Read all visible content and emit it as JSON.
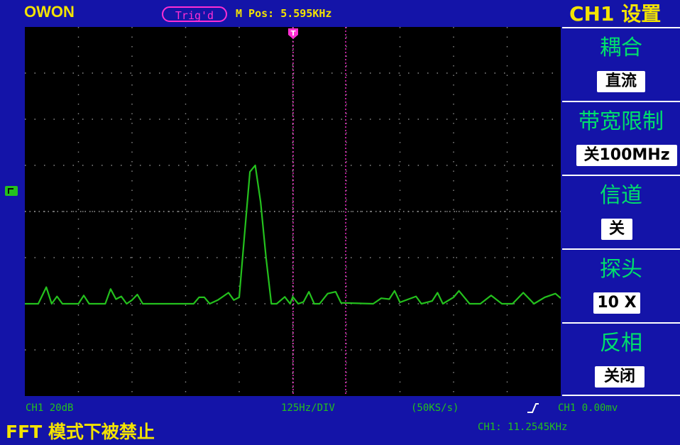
{
  "header": {
    "brand": "OWON",
    "trigger_status": "Trig'd",
    "mpos_label": "M Pos:",
    "mpos_value": "5.595KHz",
    "menu_title": "CH1 设置"
  },
  "menu": {
    "items": [
      {
        "title": "耦合",
        "value": "直流"
      },
      {
        "title": "带宽限制",
        "value": "关100MHz"
      },
      {
        "title": "信道",
        "value": "关"
      },
      {
        "title": "探头",
        "value": "10 X"
      },
      {
        "title": "反相",
        "value": "关闭"
      }
    ]
  },
  "footer": {
    "ch_scale": "CH1 20dB",
    "hz_div": "125Hz/DIV",
    "sample_rate": "(50KS/s)",
    "trigger_level": "CH1 0.00mv",
    "freq_readout": "CH1: 11.2545KHz",
    "status_message": "FFT 模式下被禁止"
  },
  "colors": {
    "background": "#1414a8",
    "trace": "#24c11d",
    "accent": "#f3e300",
    "marker": "#ff2fd3",
    "menu_title": "#00e06c"
  },
  "chart_data": {
    "type": "line",
    "series": [
      {
        "points": [
          [
            0,
            20.0
          ],
          [
            0.05,
            20.0
          ],
          [
            0.08,
            23.6
          ],
          [
            0.1,
            20.0
          ],
          [
            0.12,
            21.6
          ],
          [
            0.14,
            20.0
          ],
          [
            0.2,
            20.0
          ],
          [
            0.22,
            21.8
          ],
          [
            0.24,
            20.0
          ],
          [
            0.3,
            20.0
          ],
          [
            0.32,
            23.2
          ],
          [
            0.34,
            21.0
          ],
          [
            0.36,
            21.6
          ],
          [
            0.38,
            20.0
          ],
          [
            0.4,
            20.8
          ],
          [
            0.42,
            22.0
          ],
          [
            0.44,
            20.0
          ],
          [
            0.6,
            20.0
          ],
          [
            0.63,
            20.0
          ],
          [
            0.65,
            21.4
          ],
          [
            0.67,
            21.4
          ],
          [
            0.69,
            20.0
          ],
          [
            0.72,
            20.8
          ],
          [
            0.74,
            21.6
          ],
          [
            0.76,
            22.4
          ],
          [
            0.78,
            20.8
          ],
          [
            0.8,
            21.4
          ],
          [
            0.82,
            35.0
          ],
          [
            0.84,
            48.6
          ],
          [
            0.86,
            50.0
          ],
          [
            0.88,
            42.0
          ],
          [
            0.9,
            30.0
          ],
          [
            0.92,
            20.0
          ],
          [
            0.94,
            20.0
          ],
          [
            0.97,
            21.5
          ],
          [
            0.99,
            20.0
          ],
          [
            1.0,
            21.5
          ],
          [
            1.02,
            20.0
          ],
          [
            1.04,
            20.4
          ],
          [
            1.06,
            22.6
          ],
          [
            1.08,
            20.0
          ],
          [
            1.1,
            20.0
          ],
          [
            1.13,
            22.2
          ],
          [
            1.16,
            22.6
          ],
          [
            1.18,
            20.2
          ],
          [
            1.3,
            20.0
          ],
          [
            1.33,
            21.2
          ],
          [
            1.36,
            21.0
          ],
          [
            1.38,
            22.8
          ],
          [
            1.4,
            20.3
          ],
          [
            1.46,
            21.6
          ],
          [
            1.48,
            20.0
          ],
          [
            1.52,
            20.6
          ],
          [
            1.54,
            22.4
          ],
          [
            1.56,
            20.0
          ],
          [
            1.6,
            21.4
          ],
          [
            1.62,
            22.8
          ],
          [
            1.66,
            20.0
          ],
          [
            1.7,
            20.0
          ],
          [
            1.74,
            21.8
          ],
          [
            1.78,
            20.0
          ],
          [
            1.82,
            20.0
          ],
          [
            1.86,
            22.4
          ],
          [
            1.9,
            20.0
          ],
          [
            1.94,
            21.4
          ],
          [
            1.98,
            22.2
          ],
          [
            2.0,
            21.2
          ]
        ]
      }
    ],
    "xlim": [
      0,
      2.0
    ],
    "ylim": [
      0,
      80
    ],
    "grid": true
  }
}
